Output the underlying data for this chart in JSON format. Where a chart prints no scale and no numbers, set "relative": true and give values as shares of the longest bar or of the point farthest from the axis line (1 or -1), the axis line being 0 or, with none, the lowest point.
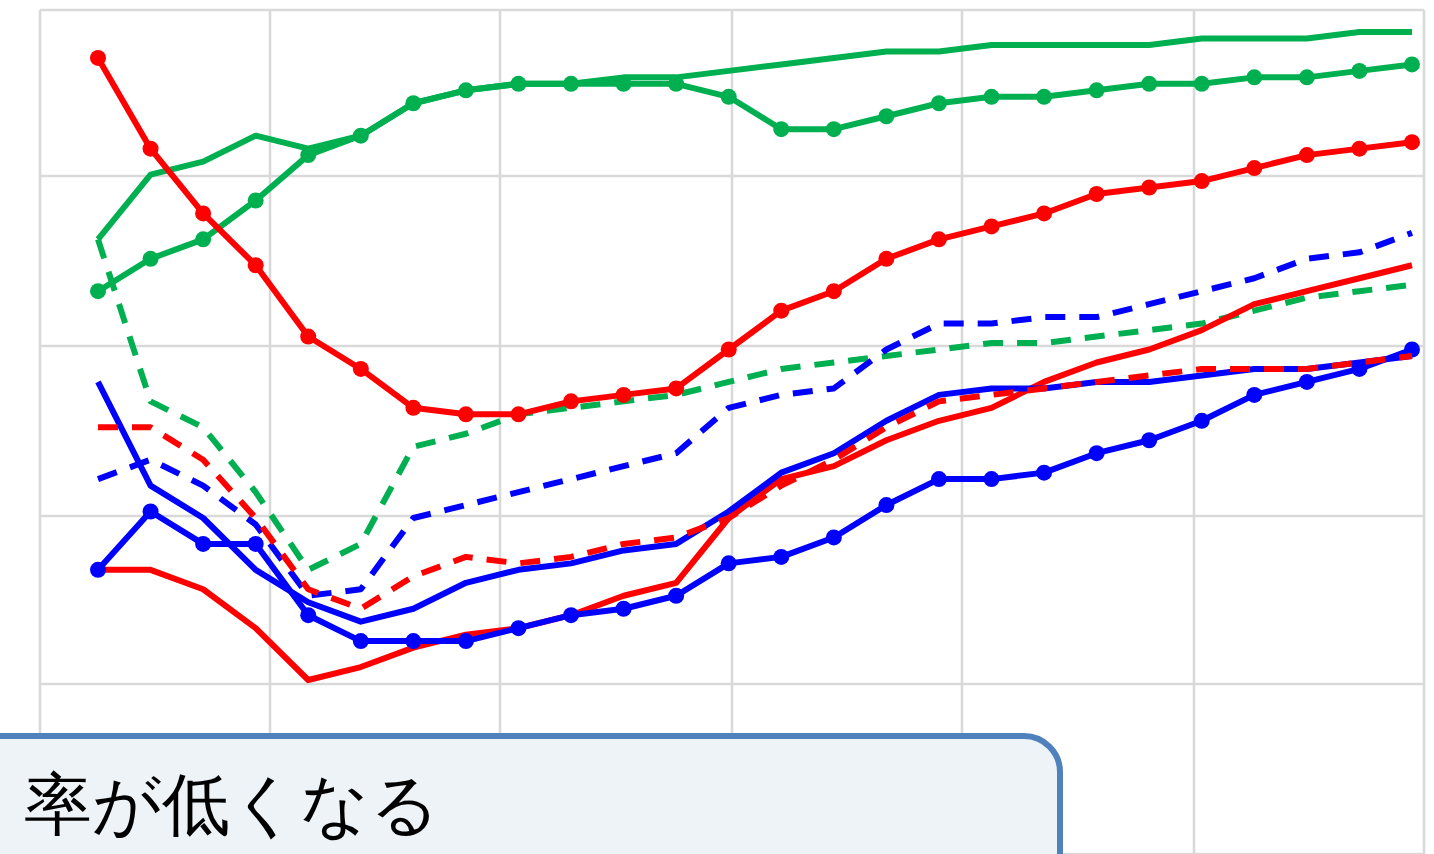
{
  "chart_data": {
    "type": "line",
    "relative": true,
    "grid": true,
    "categories": [
      null,
      null,
      null,
      null,
      null,
      null,
      null,
      null,
      null,
      null,
      null,
      null,
      null,
      null,
      null,
      null,
      null,
      null,
      null,
      null,
      null,
      null,
      null,
      null,
      null,
      null
    ],
    "series": [
      {
        "color": "#00b050",
        "line_style": "solid",
        "marker": "none",
        "values": [
          0.68,
          0.78,
          0.8,
          0.84,
          0.82,
          0.84,
          0.89,
          0.91,
          0.92,
          0.92,
          0.93,
          0.93,
          0.94,
          0.95,
          0.96,
          0.97,
          0.97,
          0.98,
          0.98,
          0.98,
          0.98,
          0.99,
          0.99,
          0.99,
          1.0,
          1.0
        ]
      },
      {
        "color": "#00b050",
        "line_style": "solid",
        "marker": "circle",
        "values": [
          0.6,
          0.65,
          0.68,
          0.74,
          0.81,
          0.84,
          0.89,
          0.91,
          0.92,
          0.92,
          0.92,
          0.92,
          0.9,
          0.85,
          0.85,
          0.87,
          0.89,
          0.9,
          0.9,
          0.91,
          0.92,
          0.92,
          0.93,
          0.93,
          0.94,
          0.95
        ]
      },
      {
        "color": "#00b050",
        "line_style": "dashed",
        "marker": "none",
        "values": [
          0.68,
          0.43,
          0.39,
          0.29,
          0.17,
          0.21,
          0.36,
          0.38,
          0.41,
          0.42,
          0.43,
          0.44,
          0.46,
          0.48,
          0.49,
          0.5,
          0.51,
          0.52,
          0.52,
          0.53,
          0.54,
          0.55,
          0.57,
          0.59,
          0.6,
          0.61
        ]
      },
      {
        "color": "#ff0000",
        "line_style": "solid",
        "marker": "circle",
        "values": [
          0.96,
          0.82,
          0.72,
          0.64,
          0.53,
          0.48,
          0.42,
          0.41,
          0.41,
          0.43,
          0.44,
          0.45,
          0.51,
          0.57,
          0.6,
          0.65,
          0.68,
          0.7,
          0.72,
          0.75,
          0.76,
          0.77,
          0.79,
          0.81,
          0.82,
          0.83
        ]
      },
      {
        "color": "#ff0000",
        "line_style": "solid",
        "marker": "none",
        "values": [
          0.17,
          0.17,
          0.14,
          0.08,
          0.0,
          0.02,
          0.05,
          0.07,
          0.08,
          0.1,
          0.13,
          0.15,
          0.25,
          0.31,
          0.33,
          0.37,
          0.4,
          0.42,
          0.46,
          0.49,
          0.51,
          0.54,
          0.58,
          0.6,
          0.62,
          0.64
        ]
      },
      {
        "color": "#0000ff",
        "line_style": "solid",
        "marker": "circle",
        "values": [
          0.17,
          0.26,
          0.21,
          0.21,
          0.1,
          0.06,
          0.06,
          0.06,
          0.08,
          0.1,
          0.11,
          0.13,
          0.18,
          0.19,
          0.22,
          0.27,
          0.31,
          0.31,
          0.32,
          0.35,
          0.37,
          0.4,
          0.44,
          0.46,
          0.48,
          0.51
        ]
      },
      {
        "color": "#0000ff",
        "line_style": "solid",
        "marker": "none",
        "values": [
          0.46,
          0.3,
          0.25,
          0.17,
          0.12,
          0.09,
          0.11,
          0.15,
          0.17,
          0.18,
          0.2,
          0.21,
          0.26,
          0.32,
          0.35,
          0.4,
          0.44,
          0.45,
          0.45,
          0.46,
          0.46,
          0.47,
          0.48,
          0.48,
          0.49,
          0.5
        ]
      },
      {
        "color": "#0000ff",
        "line_style": "dashed",
        "marker": "none",
        "values": [
          0.31,
          0.34,
          0.3,
          0.24,
          0.13,
          0.14,
          0.25,
          0.27,
          0.29,
          0.31,
          0.33,
          0.35,
          0.42,
          0.44,
          0.45,
          0.51,
          0.55,
          0.55,
          0.56,
          0.56,
          0.58,
          0.6,
          0.62,
          0.65,
          0.66,
          0.69
        ]
      },
      {
        "color": "#ff0000",
        "line_style": "dashed",
        "marker": "none",
        "values": [
          0.39,
          0.39,
          0.34,
          0.25,
          0.14,
          0.11,
          0.16,
          0.19,
          0.18,
          0.19,
          0.21,
          0.22,
          0.25,
          0.3,
          0.34,
          0.39,
          0.43,
          0.44,
          0.45,
          0.46,
          0.47,
          0.48,
          0.48,
          0.48,
          0.49,
          0.5
        ]
      }
    ],
    "annotations": [
      "率が低くなる"
    ]
  }
}
